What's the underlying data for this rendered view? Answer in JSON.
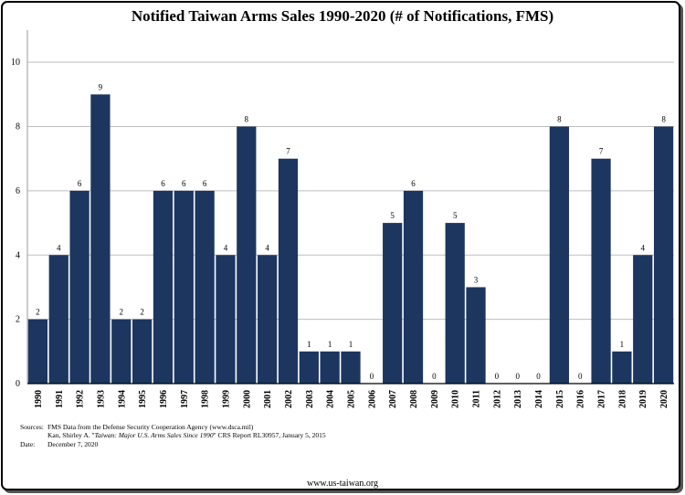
{
  "chart_data": {
    "type": "bar",
    "title": "Notified Taiwan Arms Sales 1990-2020 (# of Notifications, FMS)",
    "categories": [
      "1990",
      "1991",
      "1992",
      "1993",
      "1994",
      "1995",
      "1996",
      "1997",
      "1998",
      "1999",
      "2000",
      "2001",
      "2002",
      "2003",
      "2004",
      "2005",
      "2006",
      "2007",
      "2008",
      "2009",
      "2010",
      "2011",
      "2012",
      "2013",
      "2014",
      "2015",
      "2016",
      "2017",
      "2018",
      "2019",
      "2020"
    ],
    "values": [
      2,
      4,
      6,
      9,
      2,
      2,
      6,
      6,
      6,
      4,
      8,
      4,
      7,
      1,
      1,
      1,
      0,
      5,
      6,
      0,
      5,
      3,
      0,
      0,
      0,
      8,
      0,
      7,
      1,
      4,
      8
    ],
    "yticks": [
      "0",
      "2",
      "4",
      "6",
      "8",
      "10"
    ],
    "ylim": [
      0,
      11
    ],
    "grid": true,
    "bar_color": "#1c3660",
    "xlabel": "",
    "ylabel": ""
  },
  "sources": {
    "sources_label": "Sources:",
    "line1": "FMS Data from the Defense Security Cooperation Agency (www.dsca.mil)",
    "line2_prefix": "Kan, Shirley A. \"",
    "line2_italic": "Taiwan: Major U.S. Arms Sales Since 1990",
    "line2_suffix": "\" CRS Report RL30957, January 5, 2015",
    "date_label": "Date:",
    "date_value": "December 7, 2020"
  },
  "footer": {
    "url": "www.us-taiwan.org"
  }
}
